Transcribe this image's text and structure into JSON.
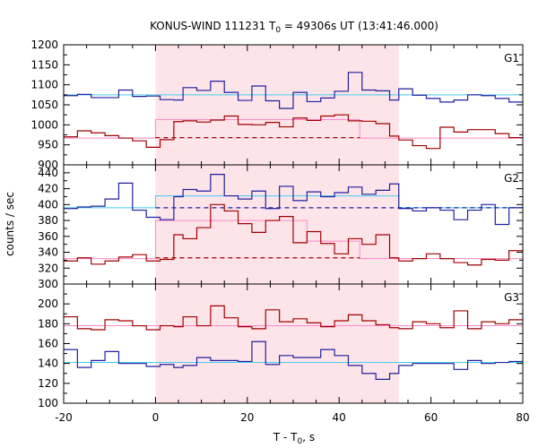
{
  "chart_data": {
    "type": "line",
    "title": {
      "main": "KONUS-WIND 111231 T",
      "sub": "0",
      "rest": " = 49306s UT (13:41:46.000)"
    },
    "xlabel": {
      "main": "T - T",
      "sub": "0",
      "rest": ", s"
    },
    "ylabel": "counts / sec",
    "xlim": [
      -20,
      80
    ],
    "xticks": [
      "-20",
      "0",
      "20",
      "40",
      "60",
      "80"
    ],
    "shaded_interval": [
      0,
      53
    ],
    "colors": {
      "hard_series": "#a00000",
      "soft_series": "#2020a0",
      "hard_background": "#ff88cc",
      "soft_background": "#44ccee",
      "shade": "#fde4e8"
    },
    "panels": [
      {
        "label": "G1",
        "ylim": [
          900,
          1200
        ],
        "yticks": [
          "900",
          "950",
          "1000",
          "1050",
          "1100",
          "1150",
          "1200"
        ],
        "series": [
          {
            "key": "soft",
            "bin_edges": [
              -20,
              -17,
              -14,
              -11,
              -8,
              -5,
              -2,
              1,
              4,
              6,
              9,
              12,
              15,
              18,
              21,
              24,
              27,
              30,
              33,
              36,
              39,
              42,
              45,
              48,
              51,
              53,
              56,
              59,
              62,
              65,
              68,
              71,
              74,
              77,
              80
            ],
            "values": [
              1073,
              1076,
              1068,
              1068,
              1087,
              1071,
              1072,
              1063,
              1062,
              1093,
              1086,
              1109,
              1081,
              1061,
              1097,
              1060,
              1041,
              1081,
              1058,
              1067,
              1084,
              1131,
              1087,
              1085,
              1062,
              1090,
              1074,
              1066,
              1057,
              1062,
              1075,
              1073,
              1066,
              1057
            ],
            "background": 1075,
            "background_style": "solid",
            "background_range": [
              -20,
              80
            ]
          },
          {
            "key": "hard",
            "bin_edges": [
              -20,
              -17,
              -14,
              -11,
              -8,
              -5,
              -2,
              1,
              4,
              6,
              9,
              12,
              15,
              18,
              21,
              24,
              27,
              30,
              33,
              36,
              39,
              42,
              45,
              48,
              51,
              53,
              56,
              59,
              62,
              65,
              68,
              71,
              74,
              77,
              80
            ],
            "values": [
              970,
              985,
              980,
              973,
              967,
              960,
              944,
              963,
              1008,
              1010,
              1007,
              1012,
              1022,
              1001,
              1000,
              1006,
              995,
              1017,
              1011,
              1022,
              1025,
              1010,
              1009,
              1003,
              972,
              962,
              948,
              941,
              994,
              982,
              988,
              988,
              978,
              968
            ],
            "step_segments": [
              [
                -20,
                0,
                967
              ],
              [
                0,
                44.5,
                1013
              ],
              [
                44.5,
                80,
                967
              ]
            ],
            "dashed_level": 968,
            "dashed_range": [
              0,
              44.5
            ]
          }
        ]
      },
      {
        "label": "G2",
        "ylim": [
          300,
          450
        ],
        "yticks": [
          "300",
          "320",
          "340",
          "360",
          "380",
          "400",
          "420",
          "440"
        ],
        "series": [
          {
            "key": "soft",
            "bin_edges": [
              -20,
              -17,
              -14,
              -11,
              -8,
              -5,
              -2,
              1,
              4,
              6,
              9,
              12,
              15,
              18,
              21,
              24,
              27,
              30,
              33,
              36,
              39,
              42,
              45,
              48,
              51,
              53,
              56,
              59,
              62,
              65,
              68,
              71,
              74,
              77,
              80
            ],
            "values": [
              395,
              397,
              398,
              407,
              427,
              393,
              384,
              381,
              410,
              419,
              417,
              438,
              411,
              407,
              417,
              395,
              423,
              405,
              416,
              410,
              415,
              422,
              413,
              418,
              426,
              395,
              392,
              396,
              393,
              381,
              393,
              400,
              375,
              396
            ],
            "step_segments": [
              [
                -20,
                0,
                396
              ],
              [
                0,
                53,
                411
              ],
              [
                53,
                80,
                396
              ]
            ],
            "dashed_level": 396,
            "dashed_range": [
              0,
              80
            ]
          },
          {
            "key": "hard",
            "bin_edges": [
              -20,
              -17,
              -14,
              -11,
              -8,
              -5,
              -2,
              1,
              4,
              6,
              9,
              12,
              15,
              18,
              21,
              24,
              27,
              30,
              33,
              36,
              39,
              42,
              45,
              48,
              51,
              53,
              56,
              59,
              62,
              65,
              68,
              71,
              74,
              77,
              80
            ],
            "values": [
              329,
              333,
              325,
              329,
              334,
              337,
              329,
              331,
              362,
              357,
              371,
              400,
              392,
              376,
              365,
              380,
              385,
              352,
              366,
              351,
              338,
              357,
              350,
              362,
              333,
              329,
              332,
              338,
              332,
              327,
              324,
              331,
              330,
              342
            ],
            "step_segments": [
              [
                -20,
                0,
                332
              ],
              [
                0,
                33,
                380
              ],
              [
                33,
                44.5,
                354
              ],
              [
                44.5,
                80,
                332
              ]
            ],
            "dashed_level": 333,
            "dashed_range": [
              0,
              44.5
            ]
          }
        ]
      },
      {
        "label": "G3",
        "ylim": [
          100,
          220
        ],
        "yticks": [
          "100",
          "120",
          "140",
          "160",
          "180",
          "200"
        ],
        "series": [
          {
            "key": "hard",
            "bin_edges": [
              -20,
              -17,
              -14,
              -11,
              -8,
              -5,
              -2,
              1,
              4,
              6,
              9,
              12,
              15,
              18,
              21,
              24,
              27,
              30,
              33,
              36,
              39,
              42,
              45,
              48,
              51,
              53,
              56,
              59,
              62,
              65,
              68,
              71,
              74,
              77,
              80
            ],
            "values": [
              187,
              175,
              174,
              184,
              183,
              178,
              174,
              178,
              177,
              187,
              178,
              198,
              186,
              177,
              175,
              194,
              182,
              185,
              181,
              177,
              183,
              189,
              183,
              179,
              176,
              175,
              182,
              180,
              176,
              193,
              175,
              182,
              180,
              184
            ],
            "background": 178,
            "background_style": "solid",
            "background_range": [
              -20,
              80
            ]
          },
          {
            "key": "soft",
            "bin_edges": [
              -20,
              -17,
              -14,
              -11,
              -8,
              -5,
              -2,
              1,
              4,
              6,
              9,
              12,
              15,
              18,
              21,
              24,
              27,
              30,
              33,
              36,
              39,
              42,
              45,
              48,
              51,
              53,
              56,
              59,
              62,
              65,
              68,
              71,
              74,
              77,
              80
            ],
            "values": [
              154,
              136,
              143,
              152,
              140,
              140,
              137,
              139,
              136,
              138,
              146,
              143,
              143,
              142,
              162,
              139,
              148,
              146,
              146,
              154,
              148,
              138,
              130,
              124,
              130,
              138,
              140,
              140,
              140,
              134,
              143,
              140,
              141,
              142
            ],
            "background": 141,
            "background_style": "solid",
            "background_range": [
              -20,
              80
            ]
          }
        ]
      }
    ]
  }
}
